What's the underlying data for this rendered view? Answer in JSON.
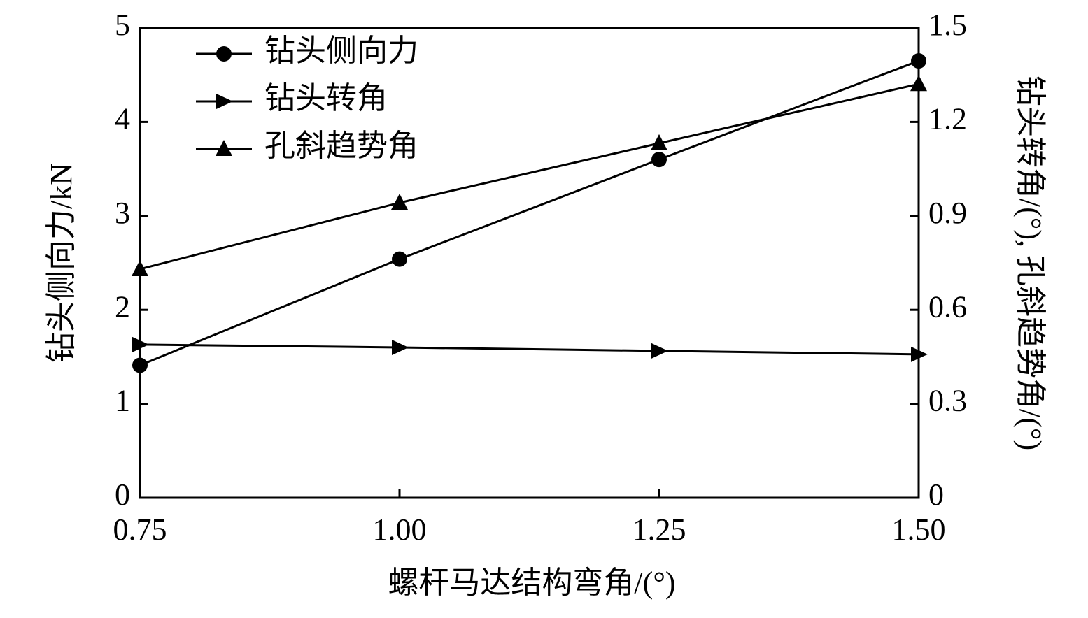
{
  "chart_data": {
    "type": "line",
    "xlabel": "螺杆马达结构弯角/(°)",
    "ylabel": "钻头侧向力/kN",
    "y2label": "钻头转角/(°), 孔斜趋势角/(°)",
    "x": [
      0.75,
      1.0,
      1.25,
      1.5
    ],
    "xlim": [
      0.75,
      1.5
    ],
    "xticks": [
      0.75,
      {
        "value": 1.0,
        "label": "1.00"
      },
      {
        "value": 1.25,
        "label": "1.25"
      },
      {
        "value": 1.5,
        "label": "1.50"
      }
    ],
    "ylim": [
      0,
      5
    ],
    "yticks": [
      0,
      1,
      2,
      3,
      4,
      5
    ],
    "y2lim": [
      0,
      1.5
    ],
    "y2ticks": [
      0,
      0.3,
      0.6,
      0.9,
      1.2,
      1.5
    ],
    "legend": "upper-left",
    "series": [
      {
        "name": "钻头侧向力",
        "color": "#000000",
        "marker": "circle",
        "values": [
          1.41,
          2.54,
          3.6,
          4.65
        ]
      },
      {
        "name": "钻头转角",
        "color": "#000000",
        "marker": "triangle-right",
        "axis": "y2",
        "values": [
          0.489,
          0.48,
          0.469,
          0.458
        ]
      },
      {
        "name": "孔斜趋势角",
        "color": "#000000",
        "marker": "triangle-up",
        "axis": "y2",
        "values": [
          0.73,
          0.942,
          1.132,
          1.321
        ]
      }
    ]
  }
}
